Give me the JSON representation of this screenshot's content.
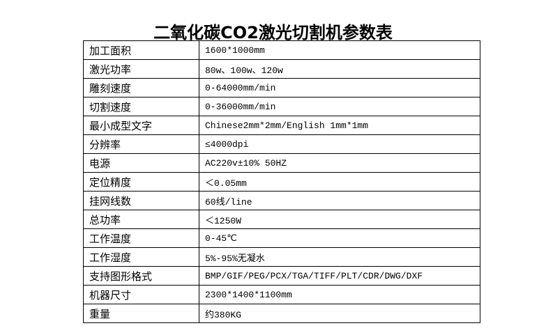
{
  "title": "二氧化碳CO2激光切割机参数表",
  "rows": [
    {
      "label": "加工面积",
      "value": "1600*1000mm"
    },
    {
      "label": "激光功率",
      "value": "80w、100w、120w"
    },
    {
      "label": "雕刻速度",
      "value": "0-64000mm/min"
    },
    {
      "label": "切割速度",
      "value": "0-36000mm/min"
    },
    {
      "label": "最小成型文字",
      "value": "Chinese2mm*2mm/English 1mm*1mm"
    },
    {
      "label": "分辨率",
      "value": "≤4000dpi"
    },
    {
      "label": "电源",
      "value": "AC220v±10% 50HZ"
    },
    {
      "label": "定位精度",
      "value": "＜0.05mm"
    },
    {
      "label": "挂网线数",
      "value": "60线/line"
    },
    {
      "label": "总功率",
      "value": "＜1250W"
    },
    {
      "label": "工作温度",
      "value": "0-45℃"
    },
    {
      "label": "工作湿度",
      "value": "5%-95%无凝水"
    },
    {
      "label": "支持图形格式",
      "value": "BMP/GIF/PEG/PCX/TGA/TIFF/PLT/CDR/DWG/DXF"
    },
    {
      "label": "机器尺寸",
      "value": "2300*1400*1100mm"
    },
    {
      "label": "重量",
      "value": "约380KG"
    }
  ]
}
